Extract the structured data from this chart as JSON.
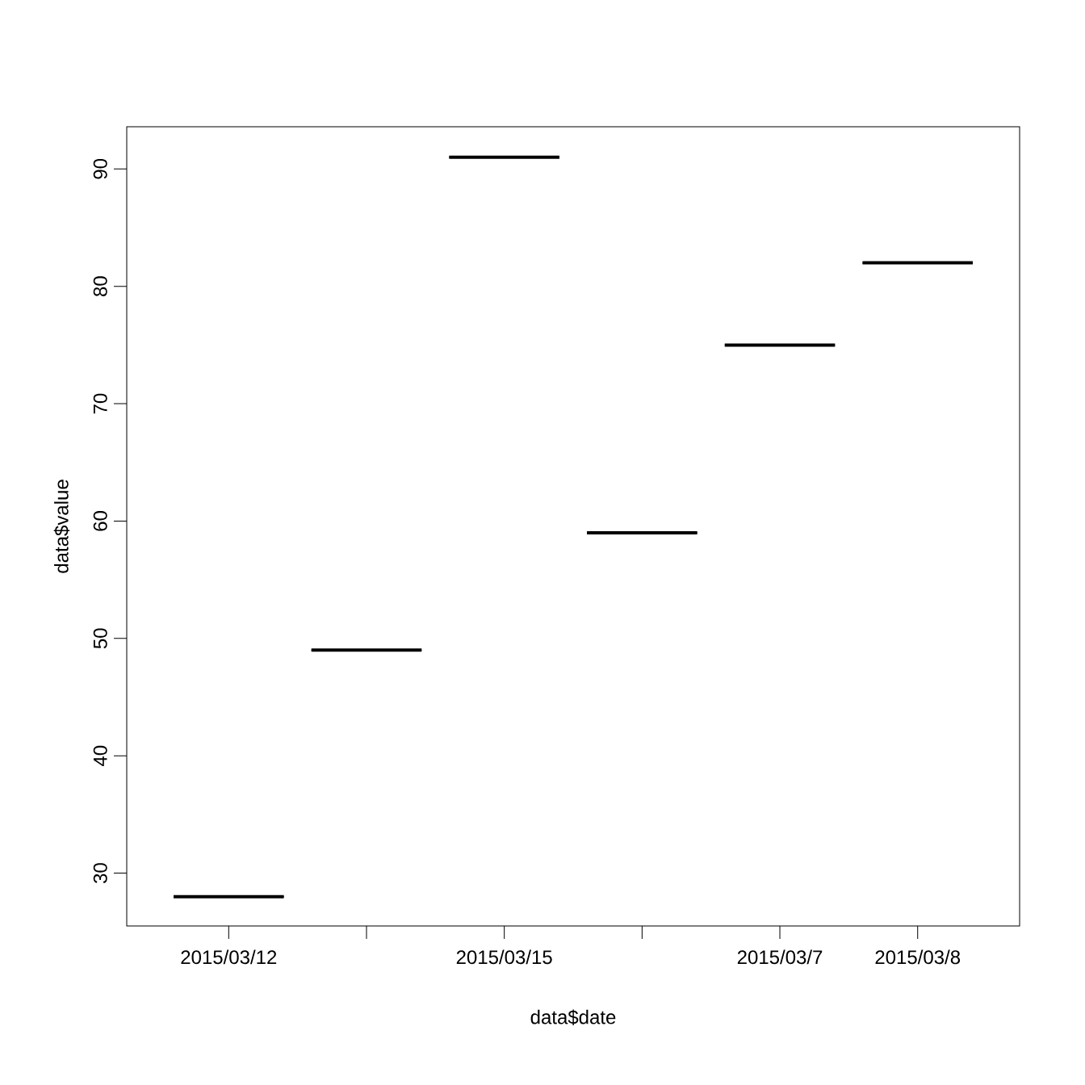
{
  "chart_data": {
    "type": "box",
    "xlabel": "data$date",
    "ylabel": "data$value",
    "categories": [
      "2015/03/12",
      null,
      "2015/03/15",
      null,
      "2015/03/7",
      "2015/03/8"
    ],
    "boxes": [
      {
        "low": 28,
        "q1": 28,
        "median": 28,
        "q3": 28,
        "high": 28
      },
      {
        "low": 49,
        "q1": 49,
        "median": 49,
        "q3": 49,
        "high": 49
      },
      {
        "low": 91,
        "q1": 91,
        "median": 91,
        "q3": 91,
        "high": 91
      },
      {
        "low": 59,
        "q1": 59,
        "median": 59,
        "q3": 59,
        "high": 59
      },
      {
        "low": 75,
        "q1": 75,
        "median": 75,
        "q3": 75,
        "high": 75
      },
      {
        "low": 82,
        "q1": 82,
        "median": 82,
        "q3": 82,
        "high": 82
      }
    ],
    "color": "#000000",
    "ylim": [
      25.5,
      93.6
    ],
    "yticks": [
      30,
      40,
      50,
      60,
      70,
      80,
      90
    ]
  }
}
